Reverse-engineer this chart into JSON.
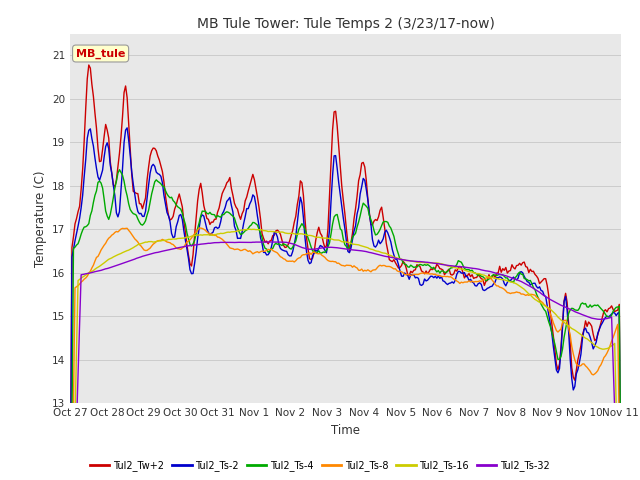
{
  "title": "MB Tule Tower: Tule Temps 2 (3/23/17-now)",
  "xlabel": "Time",
  "ylabel": "Temperature (C)",
  "ylim": [
    13.0,
    21.5
  ],
  "yticks": [
    13.0,
    14.0,
    15.0,
    16.0,
    17.0,
    18.0,
    19.0,
    20.0,
    21.0
  ],
  "xtick_labels": [
    "Oct 27",
    "Oct 28",
    "Oct 29",
    "Oct 30",
    "Oct 31",
    "Nov 1",
    "Nov 2",
    "Nov 3",
    "Nov 4",
    "Nov 5",
    "Nov 6",
    "Nov 7",
    "Nov 8",
    "Nov 9",
    "Nov 10",
    "Nov 11"
  ],
  "series_colors": [
    "#cc0000",
    "#0000cc",
    "#00aa00",
    "#ff8800",
    "#cccc00",
    "#8800cc"
  ],
  "series_names": [
    "Tul2_Tw+2",
    "Tul2_Ts-2",
    "Tul2_Ts-4",
    "Tul2_Ts-8",
    "Tul2_Ts-16",
    "Tul2_Ts-32"
  ],
  "annotation_text": "MB_tule",
  "annotation_color": "#cc0000",
  "annotation_bg": "#ffffcc",
  "background_color": "#ffffff",
  "grid_color": "#cccccc",
  "axes_bg": "#e8e8e8"
}
